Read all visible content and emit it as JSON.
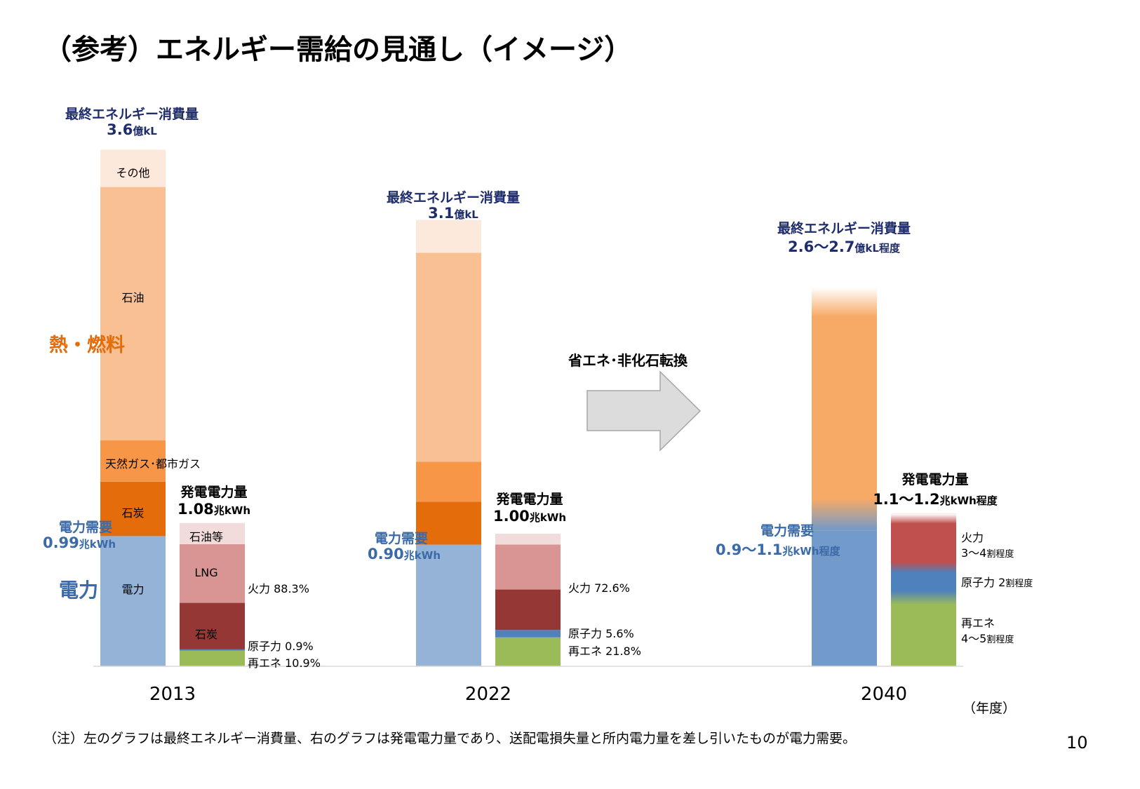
{
  "title": "（参考）エネルギー需給の見通し（イメージ）",
  "note": "（注）左のグラフは最終エネルギー消費量、右のグラフは発電電力量であり、送配電損失量と所内電力量を差し引いたものが電力需要。",
  "page_number": "10",
  "side_labels": {
    "heat": "熱・燃料",
    "power": "電力"
  },
  "arrow_label": "省エネ･非化石転換",
  "year_unit": "（年度）",
  "chart_data": {
    "type": "bar",
    "stacked": true,
    "categories": [
      "2013",
      "2022",
      "2040"
    ],
    "energy": {
      "heading": "最終エネルギー消費量",
      "unit": "億kL",
      "totals": [
        "3.6",
        "3.1",
        "2.6〜2.7"
      ],
      "total_suffix": [
        "",
        "",
        "程度"
      ],
      "segments": [
        "電力",
        "石炭",
        "天然ガス･都市ガス",
        "石油",
        "その他"
      ],
      "values": [
        [
          0.91,
          0.38,
          0.29,
          1.77,
          0.26
        ],
        [
          0.85,
          0.3,
          0.28,
          1.46,
          0.23
        ],
        [
          0.95,
          0,
          0,
          1.55,
          0.15
        ]
      ],
      "colors": [
        "#95b3d7",
        "#e46c0a",
        "#f69646",
        "#f9c193",
        "#fde9db"
      ],
      "colors_2040": [
        "#729aca",
        "#f7aa66",
        "#f7aa66",
        "#f7aa66",
        "#fde9db"
      ]
    },
    "demand": {
      "heading": "電力需要",
      "unit": "兆kWh",
      "values": [
        "0.99",
        "0.90",
        "0.9〜1.1"
      ],
      "suffix": [
        "",
        "",
        "程度"
      ]
    },
    "generation": {
      "heading": "発電電力量",
      "unit": "兆kWh",
      "totals": [
        1.08,
        1.0,
        1.15
      ],
      "total_labels": [
        "1.08",
        "1.00",
        "1.1〜1.2"
      ],
      "total_suffix": [
        "",
        "",
        "程度"
      ],
      "segments": [
        "再エネ",
        "原子力",
        "石炭",
        "LNG",
        "石油等"
      ],
      "shares_percent": [
        [
          10.9,
          0.9,
          32.5,
          41.0,
          14.8
        ],
        [
          21.8,
          5.6,
          30.5,
          33.9,
          8.2
        ],
        [
          45,
          20,
          35,
          0,
          0
        ]
      ],
      "colors": [
        "#9bbb59",
        "#4f81bd",
        "#953735",
        "#d99594",
        "#f2dcdb"
      ],
      "colors_2040": [
        "#9bbb59",
        "#4f81bd",
        "#c0504d",
        "#c0504d",
        "#c0504d"
      ]
    },
    "segment_labels_2013": {
      "other": "その他",
      "oil": "石油",
      "gas": "天然ガス･都市ガス",
      "coal": "石炭",
      "power": "電力",
      "gen_oil": "石油等",
      "gen_lng": "LNG",
      "gen_coal": "石炭"
    },
    "callouts": {
      "y2013": {
        "thermal": "火力 88.3%",
        "nuclear": "原子力 0.9%",
        "renew": "再エネ 10.9%"
      },
      "y2022": {
        "thermal": "火力 72.6%",
        "nuclear": "原子力 5.6%",
        "renew": "再エネ 21.8%"
      },
      "y2040": {
        "thermal": "火力",
        "thermal_share": "3〜4",
        "nuclear": "原子力",
        "nuclear_share": "2",
        "renew": "再エネ",
        "renew_share": "4〜5",
        "share_suffix": "割程度"
      }
    }
  }
}
